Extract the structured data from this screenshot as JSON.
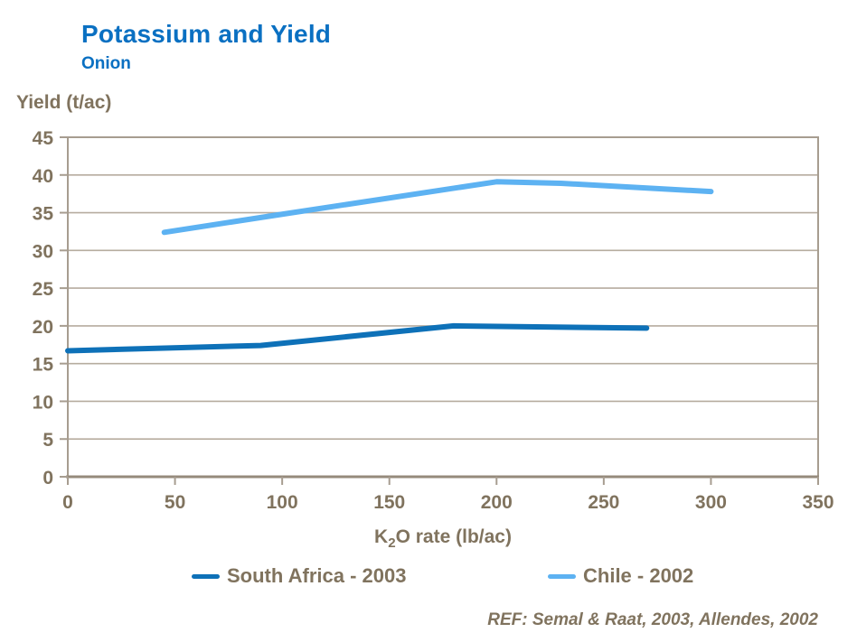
{
  "page": {
    "title": "Potassium and Yield",
    "subtitle": "Onion",
    "ref_note": "REF: Semal & Raat, 2003, Allendes, 2002"
  },
  "colors": {
    "title_blue": "#0a70c2",
    "label_brown": "#80735e",
    "grid": "#b6ac9f",
    "border": "#a79d90",
    "axis_dark": "#958a7b",
    "south_africa": "#0e71b8",
    "chile": "#5db2f2"
  },
  "x_axis_title_parts": {
    "prefix": "K",
    "sub": "2",
    "suffix": "O rate (lb/ac)"
  },
  "chart_data": {
    "type": "line",
    "title": "Potassium and Yield",
    "subtitle": "Onion",
    "xlabel": "K2O rate (lb/ac)",
    "ylabel": "Yield (t/ac)",
    "xlim": [
      0,
      350
    ],
    "ylim": [
      0,
      45
    ],
    "x_ticks": [
      0,
      50,
      100,
      150,
      200,
      250,
      300,
      350
    ],
    "y_ticks": [
      0,
      5,
      10,
      15,
      20,
      25,
      30,
      35,
      40,
      45
    ],
    "grid": "horizontal",
    "legend_position": "bottom",
    "series": [
      {
        "name": "South Africa - 2003",
        "color": "#0e71b8",
        "points": [
          [
            0,
            16.7
          ],
          [
            90,
            17.4
          ],
          [
            180,
            20.0
          ],
          [
            270,
            19.7
          ]
        ]
      },
      {
        "name": "Chile - 2002",
        "color": "#5db2f2",
        "points": [
          [
            45,
            32.4
          ],
          [
            100,
            34.8
          ],
          [
            200,
            39.1
          ],
          [
            230,
            38.9
          ],
          [
            300,
            37.8
          ]
        ]
      }
    ]
  }
}
